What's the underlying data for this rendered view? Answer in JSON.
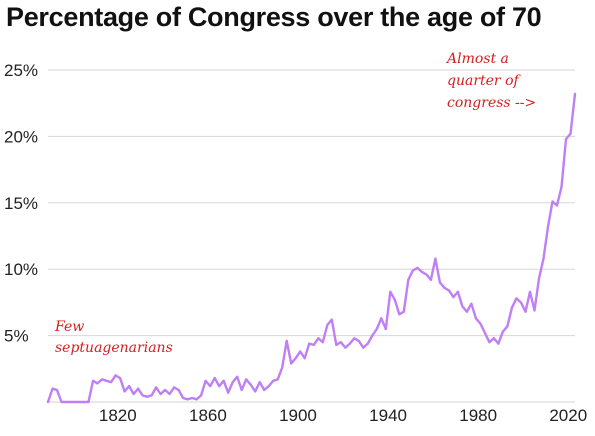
{
  "chart_data": {
    "type": "line",
    "title": "Percentage of Congress over the age of 70",
    "xlabel": "",
    "ylabel": "",
    "xlim": [
      1789,
      2023
    ],
    "ylim": [
      0,
      25
    ],
    "y_ticks": [
      {
        "value": 5,
        "label": "5%"
      },
      {
        "value": 10,
        "label": "10%"
      },
      {
        "value": 15,
        "label": "15%"
      },
      {
        "value": 20,
        "label": "20%"
      },
      {
        "value": 25,
        "label": "25%"
      }
    ],
    "x_ticks": [
      {
        "value": 1820,
        "label": "1820"
      },
      {
        "value": 1860,
        "label": "1860"
      },
      {
        "value": 1900,
        "label": "1900"
      },
      {
        "value": 1940,
        "label": "1940"
      },
      {
        "value": 1980,
        "label": "1980"
      },
      {
        "value": 2020,
        "label": "2020"
      }
    ],
    "grid": true,
    "line_color": "#bf7ff5",
    "annotation_color": "#d42020",
    "series": [
      {
        "x": [
          1789,
          1791,
          1793,
          1795,
          1797,
          1799,
          1801,
          1803,
          1805,
          1807,
          1809,
          1811,
          1813,
          1815,
          1817,
          1819,
          1821,
          1823,
          1825,
          1827,
          1829,
          1831,
          1833,
          1835,
          1837,
          1839,
          1841,
          1843,
          1845,
          1847,
          1849,
          1851,
          1853,
          1855,
          1857,
          1859,
          1861,
          1863,
          1865,
          1867,
          1869,
          1871,
          1873,
          1875,
          1877,
          1879,
          1881,
          1883,
          1885,
          1887,
          1889,
          1891,
          1893,
          1895,
          1897,
          1899,
          1901,
          1903,
          1905,
          1907,
          1909,
          1911,
          1913,
          1915,
          1917,
          1919,
          1921,
          1923,
          1925,
          1927,
          1929,
          1931,
          1933,
          1935,
          1937,
          1939,
          1941,
          1943,
          1945,
          1947,
          1949,
          1951,
          1953,
          1955,
          1957,
          1959,
          1961,
          1963,
          1965,
          1967,
          1969,
          1971,
          1973,
          1975,
          1977,
          1979,
          1981,
          1983,
          1985,
          1987,
          1989,
          1991,
          1993,
          1995,
          1997,
          1999,
          2001,
          2003,
          2005,
          2007,
          2009,
          2011,
          2013,
          2015,
          2017,
          2019,
          2021,
          2023
        ],
        "values": [
          0.0,
          1.0,
          0.9,
          0.0,
          0.0,
          0.0,
          0.0,
          0.0,
          0.0,
          0.0,
          1.6,
          1.4,
          1.7,
          1.6,
          1.5,
          2.0,
          1.8,
          0.8,
          1.2,
          0.6,
          1.0,
          0.5,
          0.4,
          0.5,
          1.1,
          0.6,
          0.9,
          0.6,
          1.1,
          0.9,
          0.3,
          0.2,
          0.3,
          0.2,
          0.5,
          1.6,
          1.2,
          1.8,
          1.2,
          1.6,
          0.7,
          1.5,
          1.9,
          0.9,
          1.7,
          1.3,
          0.8,
          1.5,
          0.9,
          1.2,
          1.6,
          1.7,
          2.6,
          4.6,
          2.9,
          3.3,
          3.8,
          3.3,
          4.4,
          4.3,
          4.8,
          4.5,
          5.8,
          6.2,
          4.3,
          4.5,
          4.1,
          4.4,
          4.8,
          4.6,
          4.1,
          4.4,
          5.0,
          5.5,
          6.3,
          5.5,
          8.3,
          7.7,
          6.6,
          6.8,
          9.2,
          9.9,
          10.1,
          9.8,
          9.6,
          9.2,
          10.8,
          9.0,
          8.6,
          8.4,
          7.9,
          8.3,
          7.2,
          6.8,
          7.4,
          6.3,
          5.9,
          5.2,
          4.5,
          4.8,
          4.4,
          5.3,
          5.7,
          7.1,
          7.8,
          7.5,
          6.8,
          8.3,
          6.9,
          9.3,
          10.8,
          13.2,
          15.1,
          14.8,
          16.2,
          19.8,
          20.2,
          23.2
        ]
      }
    ],
    "annotations": [
      {
        "id": "few",
        "lines": [
          "Few",
          "septuagenarians"
        ]
      },
      {
        "id": "quarter",
        "lines": [
          "Almost a",
          "quarter of",
          "congress -->"
        ]
      }
    ]
  }
}
